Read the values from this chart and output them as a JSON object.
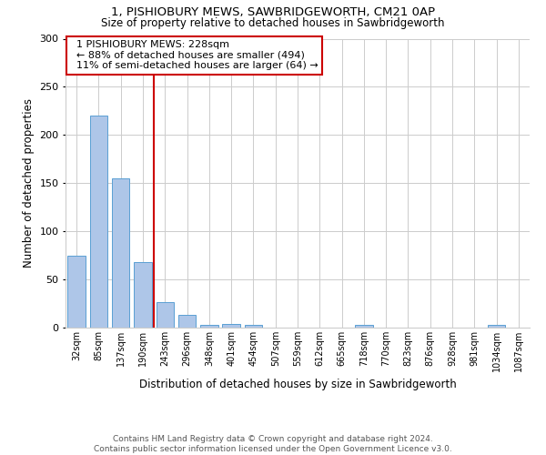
{
  "title_line1": "1, PISHIOBURY MEWS, SAWBRIDGEWORTH, CM21 0AP",
  "title_line2": "Size of property relative to detached houses in Sawbridgeworth",
  "xlabel": "Distribution of detached houses by size in Sawbridgeworth",
  "ylabel": "Number of detached properties",
  "footnote": "Contains HM Land Registry data © Crown copyright and database right 2024.\nContains public sector information licensed under the Open Government Licence v3.0.",
  "bin_labels": [
    "32sqm",
    "85sqm",
    "137sqm",
    "190sqm",
    "243sqm",
    "296sqm",
    "348sqm",
    "401sqm",
    "454sqm",
    "507sqm",
    "559sqm",
    "612sqm",
    "665sqm",
    "718sqm",
    "770sqm",
    "823sqm",
    "876sqm",
    "928sqm",
    "981sqm",
    "1034sqm",
    "1087sqm"
  ],
  "bar_values": [
    75,
    220,
    155,
    68,
    26,
    13,
    3,
    4,
    3,
    0,
    0,
    0,
    0,
    3,
    0,
    0,
    0,
    0,
    0,
    3,
    0
  ],
  "bar_color": "#aec6e8",
  "bar_edge_color": "#5a9fd4",
  "annotation_line1": "1 PISHIOBURY MEWS: 228sqm",
  "annotation_line2": "← 88% of detached houses are smaller (494)",
  "annotation_line3": "11% of semi-detached houses are larger (64) →",
  "annotation_box_color": "#ffffff",
  "annotation_box_edge_color": "#cc0000",
  "ylim": [
    0,
    300
  ],
  "yticks": [
    0,
    50,
    100,
    150,
    200,
    250,
    300
  ],
  "red_line_color": "#cc0000",
  "background_color": "#ffffff",
  "grid_color": "#cccccc"
}
